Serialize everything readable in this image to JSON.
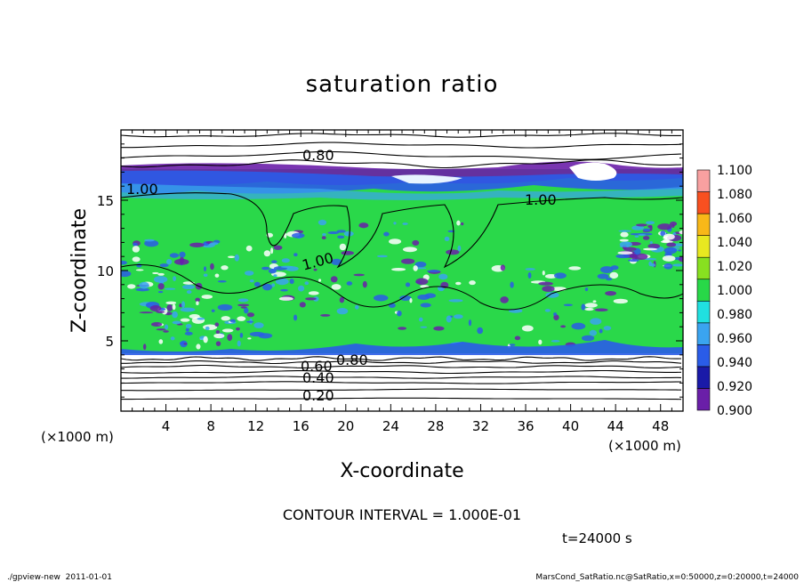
{
  "chart_data": {
    "type": "heatmap",
    "title": "saturation ratio",
    "xlabel": "X-coordinate",
    "ylabel": "Z-coordinate",
    "x_unit": "(×1000 m)",
    "y_unit": "(×1000 m)",
    "xlim": [
      0,
      50
    ],
    "ylim": [
      0,
      20
    ],
    "x_ticks": [
      4,
      8,
      12,
      16,
      20,
      24,
      28,
      32,
      36,
      40,
      44,
      48
    ],
    "y_ticks": [
      5,
      10,
      15
    ],
    "contour_interval_text": "CONTOUR INTERVAL = 1.000E-01",
    "time_text": "t=24000 s",
    "footer_left": "./gpview-new  2011-01-01",
    "footer_right": "MarsCond_SatRatio.nc@SatRatio,x=0:50000,z=0:20000,t=24000",
    "contour_labels": [
      "0.80",
      "1.00",
      "1.00",
      "1.00",
      "0.60",
      "0.80",
      "0.40",
      "0.20"
    ],
    "colorbar": {
      "levels": [
        "0.900",
        "0.920",
        "0.940",
        "0.960",
        "0.980",
        "1.000",
        "1.020",
        "1.040",
        "1.060",
        "1.080",
        "1.100"
      ],
      "colors": [
        "#6a1fa8",
        "#1a1aa8",
        "#2a5ce8",
        "#3aa4f0",
        "#20e0e0",
        "#28d848",
        "#88e020",
        "#e8e820",
        "#f8b818",
        "#f85020",
        "#f8a0a0"
      ]
    },
    "colors": {
      "saturated": "#2ad84a",
      "undersaturated_low": "#ffffff",
      "streak_blue": "#2a5ce8",
      "streak_cyan": "#3aa4f0",
      "streak_violet": "#6a1fa8"
    }
  }
}
